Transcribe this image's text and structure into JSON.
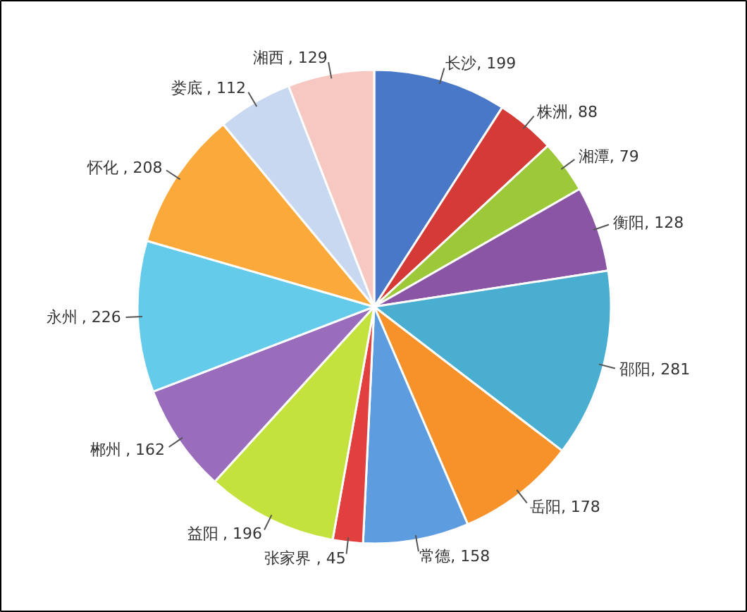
{
  "chart_data": {
    "type": "pie",
    "categories": [
      "长沙",
      "株洲",
      "湘潭",
      "衡阳",
      "邵阳",
      "岳阳",
      "常德",
      "张家界",
      "益阳",
      "郴州",
      "永州",
      "怀化",
      "娄底",
      "湘西"
    ],
    "values": [
      199,
      88,
      79,
      128,
      281,
      178,
      158,
      45,
      196,
      162,
      226,
      208,
      112,
      129
    ],
    "colors": [
      "#4a78c8",
      "#d43a36",
      "#9cc83a",
      "#8a55a4",
      "#4aaed0",
      "#f7922a",
      "#5e9ce0",
      "#e2403e",
      "#c4e23e",
      "#9a6cbc",
      "#64cbea",
      "#fca93c",
      "#c8d8f0",
      "#f7c8c2"
    ],
    "value_labels": [
      ", 199",
      ", 88",
      ", 79",
      ", 128",
      ", 281",
      ", 178",
      ", 158",
      ", 45",
      ", 196",
      ", 162",
      ", 226",
      ", 208",
      ", 112",
      ", 129"
    ]
  }
}
